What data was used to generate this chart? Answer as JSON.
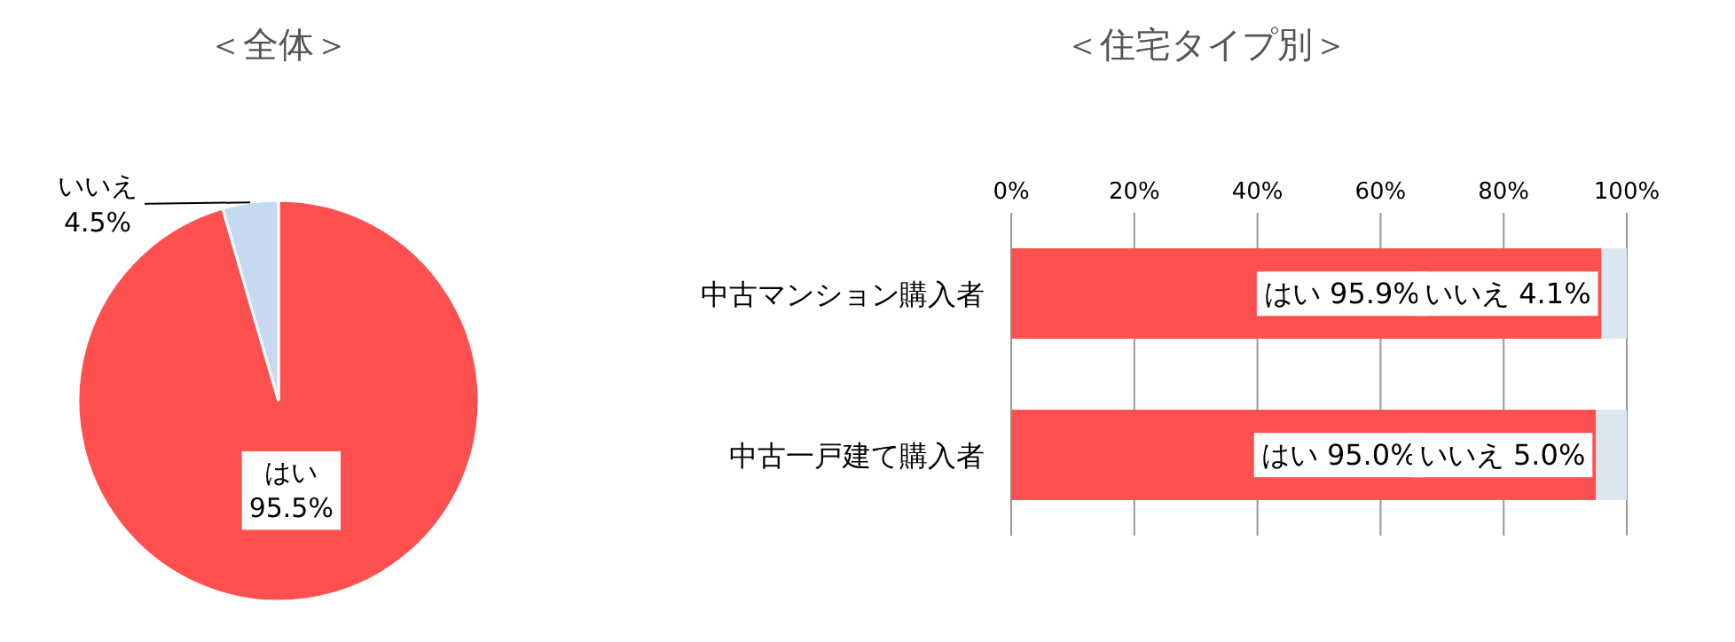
{
  "chart_data": [
    {
      "type": "pie",
      "title": "＜全体＞",
      "categories": [
        "はい",
        "いいえ"
      ],
      "values": [
        95.5,
        4.5
      ],
      "colors": [
        "#ff5050",
        "#c6d9f0"
      ],
      "value_labels": [
        "95.5%",
        "4.5%"
      ]
    },
    {
      "type": "bar",
      "title": "＜住宅タイプ別＞",
      "orientation": "horizontal",
      "stacked": true,
      "categories": [
        "中古マンション購入者",
        "中古一戸建て購入者"
      ],
      "series": [
        {
          "name": "はい",
          "color": "#ff5050",
          "values": [
            95.9,
            95.0
          ],
          "value_labels": [
            "95.9%",
            "95.0%"
          ]
        },
        {
          "name": "いいえ",
          "color": "#dce6f1",
          "values": [
            4.1,
            5.0
          ],
          "value_labels": [
            "4.1%",
            "5.0%"
          ]
        }
      ],
      "xlim": [
        0,
        100
      ],
      "xticks": [
        {
          "value": 0,
          "label": "0%"
        },
        {
          "value": 20,
          "label": "20%"
        },
        {
          "value": 40,
          "label": "40%"
        },
        {
          "value": 60,
          "label": "60%"
        },
        {
          "value": 80,
          "label": "80%"
        },
        {
          "value": 100,
          "label": "100%"
        }
      ],
      "grid": "x"
    }
  ]
}
